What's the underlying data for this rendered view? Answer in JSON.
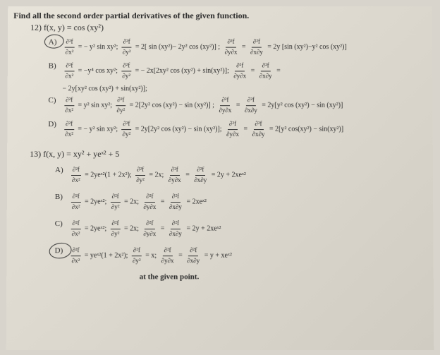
{
  "header": "Find all the second order partial derivatives of the given function.",
  "problem12": {
    "number": "12)",
    "function": "f(x, y) = cos (xy²)",
    "answers": {
      "A": {
        "letter": "A)",
        "circled": true,
        "fxx_lhs": "∂²f",
        "fxx_den": "∂x²",
        "fxx_rhs": "= − y² sin xy²;",
        "fyy_lhs": "∂²f",
        "fyy_den": "∂y²",
        "fyy_rhs": "= 2[ sin (xy²)− 2y² cos (xy²)] ;",
        "fyx_lhs": "∂²f",
        "fyx_den": "∂y∂x",
        "eq": "=",
        "fxy_lhs": "∂²f",
        "fxy_den": "∂x∂y",
        "fxy_rhs": "= 2y [sin (xy²)−y² cos (xy²)]"
      },
      "B": {
        "letter": "B)",
        "fxx_lhs": "∂²f",
        "fxx_den": "∂x²",
        "fxx_rhs": "= −y⁴ cos xy²;",
        "fyy_lhs": "∂²f",
        "fyy_den": "∂y²",
        "fyy_rhs": "= − 2x[2xy² cos (xy²) + sin(xy²)];",
        "fyx_lhs": "∂²f",
        "fyx_den": "∂y∂x",
        "eq": "=",
        "fxy_lhs": "∂²f",
        "fxy_den": "∂x∂y",
        "fxy_rhs": "=",
        "continuation": "− 2y[xy² cos (xy²) + sin(xy²)];"
      },
      "C": {
        "letter": "C)",
        "fxx_lhs": "∂²f",
        "fxx_den": "∂x²",
        "fxx_rhs": "= y² sin xy²;",
        "fyy_lhs": "∂²f",
        "fyy_den": "∂y²",
        "fyy_rhs": "= 2[2y² cos (xy²) − sin (xy²)] ;",
        "fyx_lhs": "∂²f",
        "fyx_den": "∂y∂x",
        "eq": "=",
        "fxy_lhs": "∂²f",
        "fxy_den": "∂x∂y",
        "fxy_rhs": "= 2y[y² cos (xy²) − sin (xy²)]"
      },
      "D": {
        "letter": "D)",
        "fxx_lhs": "∂²f",
        "fxx_den": "∂x²",
        "fxx_rhs": "= − y² sin xy²;",
        "fyy_lhs": "∂²f",
        "fyy_den": "∂y²",
        "fyy_rhs": "= 2y[2y² cos (xy²) − sin (xy²)];",
        "fyx_lhs": "∂²f",
        "fyx_den": "∂y∂x",
        "eq": "=",
        "fxy_lhs": "∂²f",
        "fxy_den": "∂x∂y",
        "fxy_rhs": "= 2[y² cos(xy²) − sin(xy²)]"
      }
    }
  },
  "problem13": {
    "number": "13)",
    "function": "f(x, y) = xy² + yeˣ² + 5",
    "answers": {
      "A": {
        "letter": "A)",
        "fxx_lhs": "∂²f",
        "fxx_den": "∂x²",
        "fxx_rhs": "= 2yeˣ²(1 + 2x²);",
        "fyy_lhs": "∂²f",
        "fyy_den": "∂y²",
        "fyy_rhs": "= 2x;",
        "fyx_lhs": "∂²f",
        "fyx_den": "∂y∂x",
        "eq": "=",
        "fxy_lhs": "∂²f",
        "fxy_den": "∂x∂y",
        "fxy_rhs": "= 2y + 2xeˣ²"
      },
      "B": {
        "letter": "B)",
        "fxx_lhs": "∂²f",
        "fxx_den": "∂x²",
        "fxx_rhs": "= 2yeˣ²;",
        "fyy_lhs": "∂²f",
        "fyy_den": "∂y²",
        "fyy_rhs": "= 2x;",
        "fyx_lhs": "∂²f",
        "fyx_den": "∂y∂x",
        "eq": "=",
        "fxy_lhs": "∂²f",
        "fxy_den": "∂x∂y",
        "fxy_rhs": "= 2xeˣ²"
      },
      "C": {
        "letter": "C)",
        "fxx_lhs": "∂²f",
        "fxx_den": "∂x²",
        "fxx_rhs": "= 2yeˣ²;",
        "fyy_lhs": "∂²f",
        "fyy_den": "∂y²",
        "fyy_rhs": "= 2x;",
        "fyx_lhs": "∂²f",
        "fyx_den": "∂y∂x",
        "eq": "=",
        "fxy_lhs": "∂²f",
        "fxy_den": "∂x∂y",
        "fxy_rhs": "= 2y + 2xeˣ²"
      },
      "D": {
        "letter": "D)",
        "circled": true,
        "fxx_lhs": "∂²f",
        "fxx_den": "∂x²",
        "fxx_rhs": "= yeˣ²(1 + 2x²);",
        "fyy_lhs": "∂²f",
        "fyy_den": "∂y²",
        "fyy_rhs": "= x;",
        "fyx_lhs": "∂²f",
        "fyx_den": "∂y∂x",
        "eq": "=",
        "fxy_lhs": "∂²f",
        "fxy_den": "∂x∂y",
        "fxy_rhs": "= y + xeˣ²"
      }
    }
  },
  "bottom": "at the given point."
}
